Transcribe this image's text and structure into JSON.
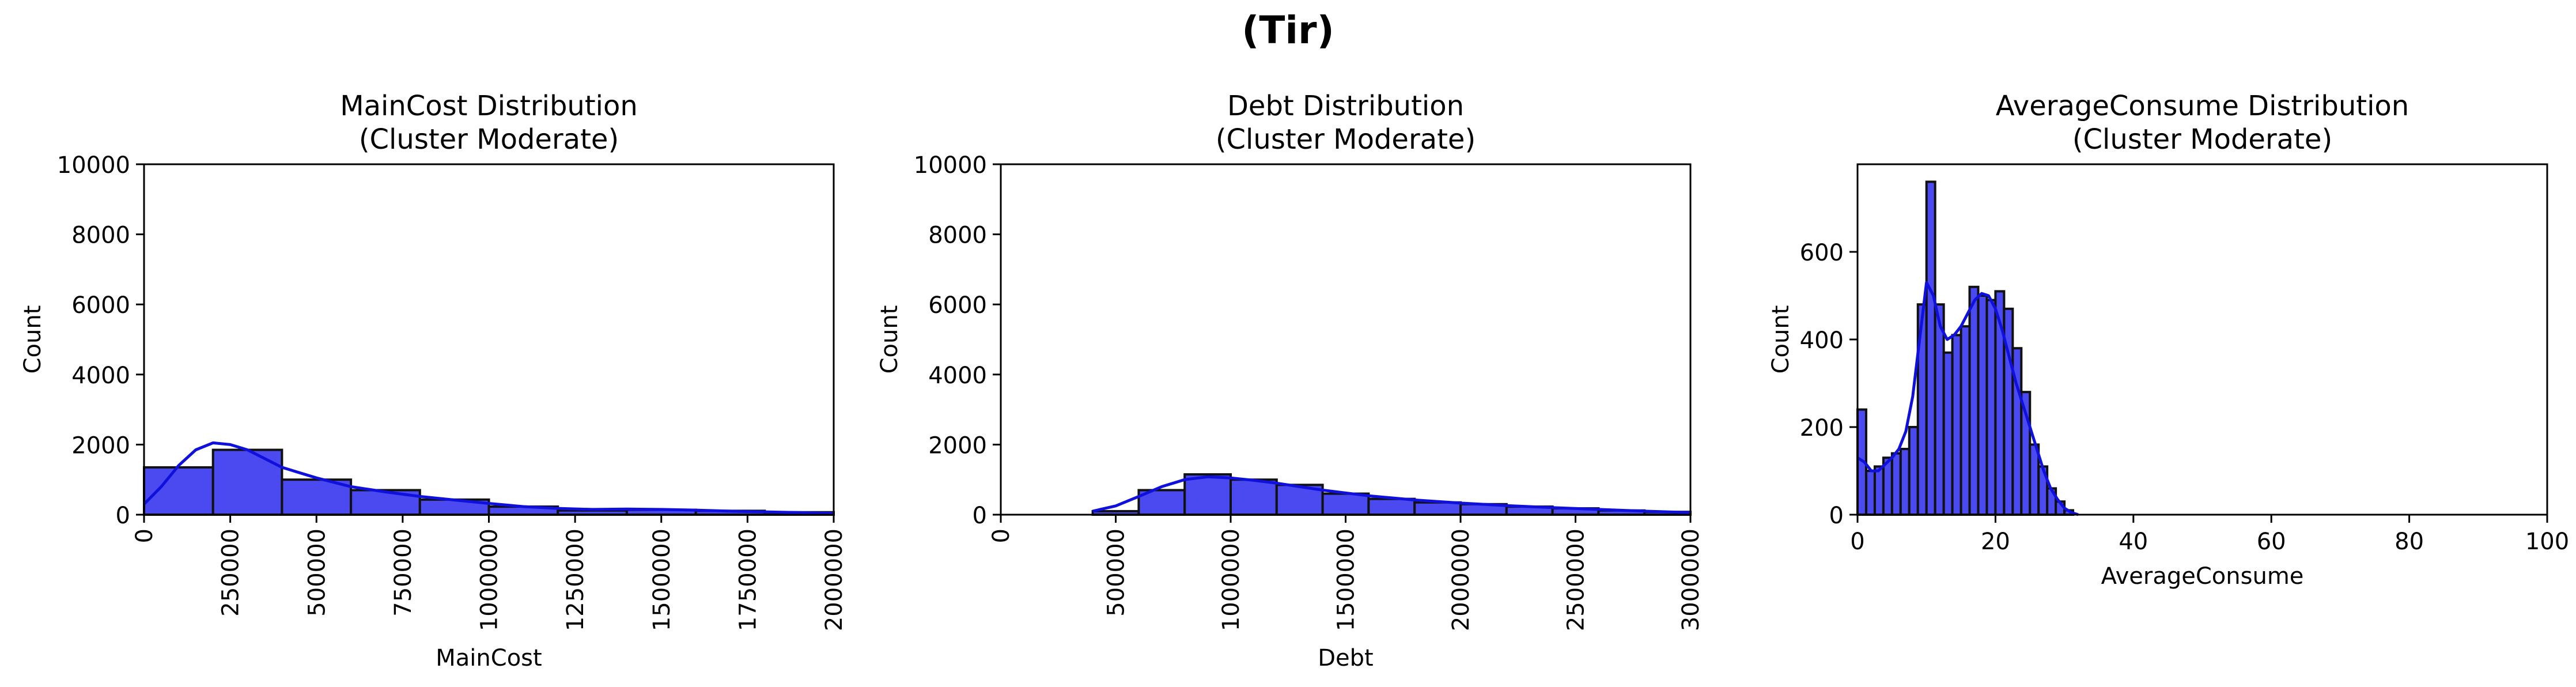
{
  "figure": {
    "title": "(Tir)"
  },
  "colors": {
    "bar_fill": "#4a4af0",
    "bar_edge": "#111111",
    "kde_line": "#1010dd"
  },
  "chart_data": [
    {
      "type": "bar",
      "kind": "histogram-with-kde",
      "title_lines": [
        "MainCost Distribution",
        "(Cluster Moderate)"
      ],
      "xlabel": "MainCost",
      "ylabel": "Count",
      "xlim": [
        0,
        2000000
      ],
      "ylim": [
        0,
        10000
      ],
      "xticks": [
        0,
        250000,
        500000,
        750000,
        1000000,
        1250000,
        1500000,
        1750000,
        2000000
      ],
      "xtick_labels": [
        "0",
        "250000",
        "500000",
        "750000",
        "1000000",
        "1250000",
        "1500000",
        "1750000",
        "2000000"
      ],
      "xtick_rotation": 90,
      "yticks": [
        0,
        2000,
        4000,
        6000,
        8000,
        10000
      ],
      "ytick_labels": [
        "0",
        "2000",
        "4000",
        "6000",
        "8000",
        "10000"
      ],
      "bins": [
        {
          "x0": 0,
          "x1": 200000,
          "count": 1350
        },
        {
          "x0": 200000,
          "x1": 400000,
          "count": 1850
        },
        {
          "x0": 400000,
          "x1": 600000,
          "count": 1000
        },
        {
          "x0": 600000,
          "x1": 800000,
          "count": 700
        },
        {
          "x0": 800000,
          "x1": 1000000,
          "count": 430
        },
        {
          "x0": 1000000,
          "x1": 1200000,
          "count": 230
        },
        {
          "x0": 1200000,
          "x1": 1400000,
          "count": 120
        },
        {
          "x0": 1400000,
          "x1": 1600000,
          "count": 140
        },
        {
          "x0": 1600000,
          "x1": 1800000,
          "count": 110
        },
        {
          "x0": 1800000,
          "x1": 2000000,
          "count": 70
        }
      ],
      "kde": {
        "x": [
          0,
          50000,
          100000,
          150000,
          200000,
          250000,
          300000,
          350000,
          400000,
          500000,
          600000,
          700000,
          800000,
          900000,
          1000000,
          1100000,
          1200000,
          1300000,
          1400000,
          1500000,
          1600000,
          1700000,
          1800000,
          1900000,
          2000000
        ],
        "y": [
          300,
          800,
          1400,
          1850,
          2050,
          2000,
          1850,
          1600,
          1350,
          1050,
          800,
          650,
          520,
          420,
          320,
          230,
          180,
          150,
          160,
          150,
          130,
          100,
          80,
          60,
          40
        ]
      }
    },
    {
      "type": "bar",
      "kind": "histogram-with-kde",
      "title_lines": [
        "Debt Distribution",
        "(Cluster Moderate)"
      ],
      "xlabel": "Debt",
      "ylabel": "Count",
      "xlim": [
        0,
        3000000
      ],
      "ylim": [
        0,
        10000
      ],
      "xticks": [
        0,
        500000,
        1000000,
        1500000,
        2000000,
        2500000,
        3000000
      ],
      "xtick_labels": [
        "0",
        "500000",
        "1000000",
        "1500000",
        "2000000",
        "2500000",
        "3000000"
      ],
      "xtick_rotation": 90,
      "yticks": [
        0,
        2000,
        4000,
        6000,
        8000,
        10000
      ],
      "ytick_labels": [
        "0",
        "2000",
        "4000",
        "6000",
        "8000",
        "10000"
      ],
      "bins": [
        {
          "x0": 0,
          "x1": 200000,
          "count": 0
        },
        {
          "x0": 200000,
          "x1": 400000,
          "count": 0
        },
        {
          "x0": 400000,
          "x1": 600000,
          "count": 100
        },
        {
          "x0": 600000,
          "x1": 800000,
          "count": 700
        },
        {
          "x0": 800000,
          "x1": 1000000,
          "count": 1150
        },
        {
          "x0": 1000000,
          "x1": 1200000,
          "count": 1000
        },
        {
          "x0": 1200000,
          "x1": 1400000,
          "count": 850
        },
        {
          "x0": 1400000,
          "x1": 1600000,
          "count": 600
        },
        {
          "x0": 1600000,
          "x1": 1800000,
          "count": 450
        },
        {
          "x0": 1800000,
          "x1": 2000000,
          "count": 350
        },
        {
          "x0": 2000000,
          "x1": 2200000,
          "count": 300
        },
        {
          "x0": 2200000,
          "x1": 2400000,
          "count": 230
        },
        {
          "x0": 2400000,
          "x1": 2600000,
          "count": 180
        },
        {
          "x0": 2600000,
          "x1": 2800000,
          "count": 120
        },
        {
          "x0": 2800000,
          "x1": 3000000,
          "count": 80
        }
      ],
      "kde": {
        "x": [
          400000,
          500000,
          600000,
          700000,
          800000,
          900000,
          1000000,
          1100000,
          1200000,
          1300000,
          1400000,
          1500000,
          1600000,
          1800000,
          2000000,
          2200000,
          2400000,
          2600000,
          2800000,
          3000000
        ],
        "y": [
          100,
          250,
          520,
          800,
          1000,
          1080,
          1050,
          980,
          900,
          800,
          700,
          620,
          540,
          420,
          330,
          260,
          200,
          150,
          100,
          60
        ]
      }
    },
    {
      "type": "bar",
      "kind": "histogram-with-kde",
      "title_lines": [
        "AverageConsume Distribution",
        "(Cluster Moderate)"
      ],
      "xlabel": "AverageConsume",
      "ylabel": "Count",
      "xlim": [
        0,
        100
      ],
      "ylim": [
        0,
        800
      ],
      "xticks": [
        0,
        20,
        40,
        60,
        80,
        100
      ],
      "xtick_labels": [
        "0",
        "20",
        "40",
        "60",
        "80",
        "100"
      ],
      "xtick_rotation": 0,
      "yticks": [
        0,
        200,
        400,
        600
      ],
      "ytick_labels": [
        "0",
        "200",
        "400",
        "600"
      ],
      "bins": [
        {
          "x0": 0,
          "x1": 1.25,
          "count": 240
        },
        {
          "x0": 1.25,
          "x1": 2.5,
          "count": 100
        },
        {
          "x0": 2.5,
          "x1": 3.75,
          "count": 110
        },
        {
          "x0": 3.75,
          "x1": 5,
          "count": 130
        },
        {
          "x0": 5,
          "x1": 6.25,
          "count": 140
        },
        {
          "x0": 6.25,
          "x1": 7.5,
          "count": 150
        },
        {
          "x0": 7.5,
          "x1": 8.75,
          "count": 200
        },
        {
          "x0": 8.75,
          "x1": 10,
          "count": 480
        },
        {
          "x0": 10,
          "x1": 11.25,
          "count": 760
        },
        {
          "x0": 11.25,
          "x1": 12.5,
          "count": 480
        },
        {
          "x0": 12.5,
          "x1": 13.75,
          "count": 370
        },
        {
          "x0": 13.75,
          "x1": 15,
          "count": 410
        },
        {
          "x0": 15,
          "x1": 16.25,
          "count": 430
        },
        {
          "x0": 16.25,
          "x1": 17.5,
          "count": 520
        },
        {
          "x0": 17.5,
          "x1": 18.75,
          "count": 500
        },
        {
          "x0": 18.75,
          "x1": 20,
          "count": 490
        },
        {
          "x0": 20,
          "x1": 21.25,
          "count": 510
        },
        {
          "x0": 21.25,
          "x1": 22.5,
          "count": 470
        },
        {
          "x0": 22.5,
          "x1": 23.75,
          "count": 380
        },
        {
          "x0": 23.75,
          "x1": 25,
          "count": 280
        },
        {
          "x0": 25,
          "x1": 26.25,
          "count": 160
        },
        {
          "x0": 26.25,
          "x1": 27.5,
          "count": 110
        },
        {
          "x0": 27.5,
          "x1": 28.75,
          "count": 60
        },
        {
          "x0": 28.75,
          "x1": 30,
          "count": 30
        },
        {
          "x0": 30,
          "x1": 31.25,
          "count": 10
        }
      ],
      "kde": {
        "x": [
          0,
          1,
          2,
          3,
          4,
          5,
          6,
          7,
          8,
          9,
          10,
          11,
          12,
          13,
          14,
          15,
          16,
          17,
          18,
          19,
          20,
          21,
          22,
          23,
          24,
          25,
          26,
          27,
          28,
          29,
          30,
          31,
          32
        ],
        "y": [
          130,
          120,
          100,
          100,
          115,
          130,
          150,
          190,
          270,
          400,
          530,
          500,
          430,
          400,
          410,
          430,
          460,
          490,
          505,
          500,
          470,
          420,
          360,
          300,
          250,
          200,
          150,
          100,
          60,
          35,
          15,
          5,
          0
        ]
      }
    }
  ]
}
